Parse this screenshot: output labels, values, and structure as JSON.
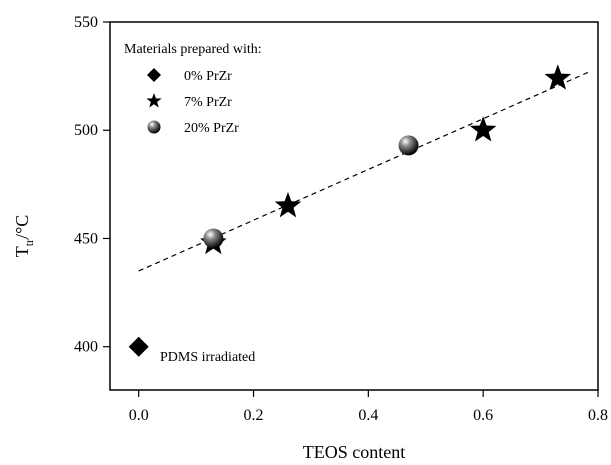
{
  "chart_data": {
    "type": "scatter",
    "xlabel": "TEOS content",
    "ylabel_main": "T",
    "ylabel_sub": "tr",
    "ylabel_unit": "/°C",
    "xlim": [
      -0.05,
      0.8
    ],
    "ylim": [
      380,
      550
    ],
    "xticks": [
      0.0,
      0.2,
      0.4,
      0.6,
      0.8
    ],
    "xtick_labels": [
      "0.0",
      "0.2",
      "0.4",
      "0.6",
      "0.8"
    ],
    "yticks": [
      400,
      450,
      500,
      550
    ],
    "ytick_labels": [
      "400",
      "450",
      "500",
      "550"
    ],
    "grid": false,
    "legend": {
      "title": "Materials prepared with:",
      "placement": "top-left",
      "entries": [
        "0% PrZr",
        "7% PrZr",
        "20% PrZr"
      ]
    },
    "series": [
      {
        "name": "0% PrZr",
        "marker": "diamond",
        "x": [],
        "y": []
      },
      {
        "name": "7% PrZr",
        "marker": "star",
        "x": [
          0.13,
          0.26,
          0.6,
          0.73
        ],
        "y": [
          448,
          465,
          500,
          524
        ]
      },
      {
        "name": "20% PrZr",
        "marker": "sphere",
        "x": [
          0.13,
          0.47
        ],
        "y": [
          450,
          493
        ]
      }
    ],
    "fit_line": {
      "style": "dashed",
      "x": [
        0.0,
        0.785
      ],
      "y": [
        435,
        527
      ]
    },
    "annotation": {
      "text": "PDMS irradiated",
      "marker": "diamond",
      "x": 0.0,
      "y": 400
    }
  }
}
